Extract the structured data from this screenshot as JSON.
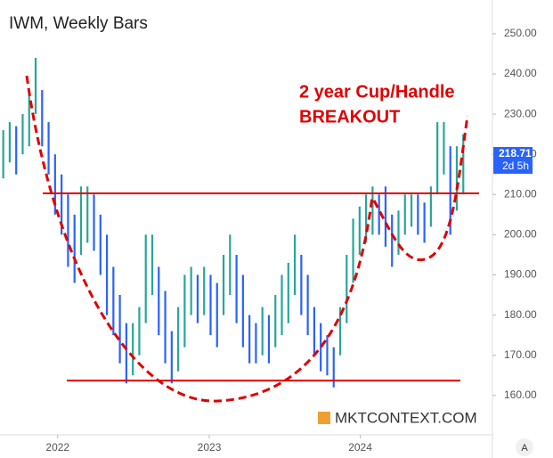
{
  "chart_data": {
    "type": "ohlc",
    "title": "IWM, Weekly Bars",
    "annotations": [
      "2 year Cup/Handle",
      "BREAKOUT"
    ],
    "watermark": "MKTCONTEXT.COM",
    "corner_button": "A",
    "last_price": 218.71,
    "last_label": "2d 5h",
    "hlines": [
      210.3,
      163.7
    ],
    "up_color": "#26a69a",
    "down_color": "#2962ff",
    "line_color": "#e00000",
    "high": [
      226,
      228,
      227,
      230,
      235,
      244,
      236,
      228,
      220,
      215,
      210,
      205,
      212,
      212,
      210,
      205,
      200,
      192,
      185,
      178,
      178,
      182,
      200,
      200,
      192,
      186,
      176,
      182,
      190,
      192,
      190,
      192,
      190,
      188,
      195,
      200,
      195,
      190,
      180,
      178,
      182,
      180,
      185,
      190,
      193,
      200,
      195,
      190,
      182,
      178,
      175,
      172,
      182,
      195,
      204,
      207,
      210,
      212,
      210,
      212,
      205,
      206,
      210,
      210,
      210,
      208,
      212,
      228,
      228,
      222,
      222,
      225
    ],
    "low": [
      214,
      218,
      215,
      220,
      222,
      230,
      222,
      215,
      205,
      200,
      192,
      188,
      195,
      198,
      196,
      190,
      180,
      175,
      168,
      163,
      165,
      170,
      178,
      185,
      175,
      168,
      163,
      166,
      172,
      180,
      178,
      180,
      175,
      172,
      180,
      185,
      178,
      172,
      168,
      168,
      170,
      168,
      172,
      175,
      178,
      185,
      180,
      175,
      170,
      166,
      165,
      162,
      170,
      178,
      188,
      195,
      198,
      200,
      200,
      197,
      192,
      195,
      200,
      202,
      200,
      198,
      202,
      210,
      215,
      200,
      206,
      210
    ],
    "xlim": [
      0,
      76
    ],
    "xticks": [
      {
        "value": 8.9,
        "label": "2022"
      },
      {
        "value": 32.3,
        "label": "2023"
      },
      {
        "value": 55.6,
        "label": "2024"
      }
    ],
    "ylim": [
      150.2,
      258.4
    ],
    "yticks": [
      {
        "value": 160,
        "label": "160.00"
      },
      {
        "value": 170,
        "label": "170.00"
      },
      {
        "value": 180,
        "label": "180.00"
      },
      {
        "value": 190,
        "label": "190.00"
      },
      {
        "value": 200,
        "label": "200.00"
      },
      {
        "value": 210,
        "label": "210.00"
      },
      {
        "value": 220,
        "label": "220.00"
      },
      {
        "value": 230,
        "label": "230.00"
      },
      {
        "value": 240,
        "label": "240.00"
      },
      {
        "value": 250,
        "label": "250.00"
      }
    ]
  }
}
